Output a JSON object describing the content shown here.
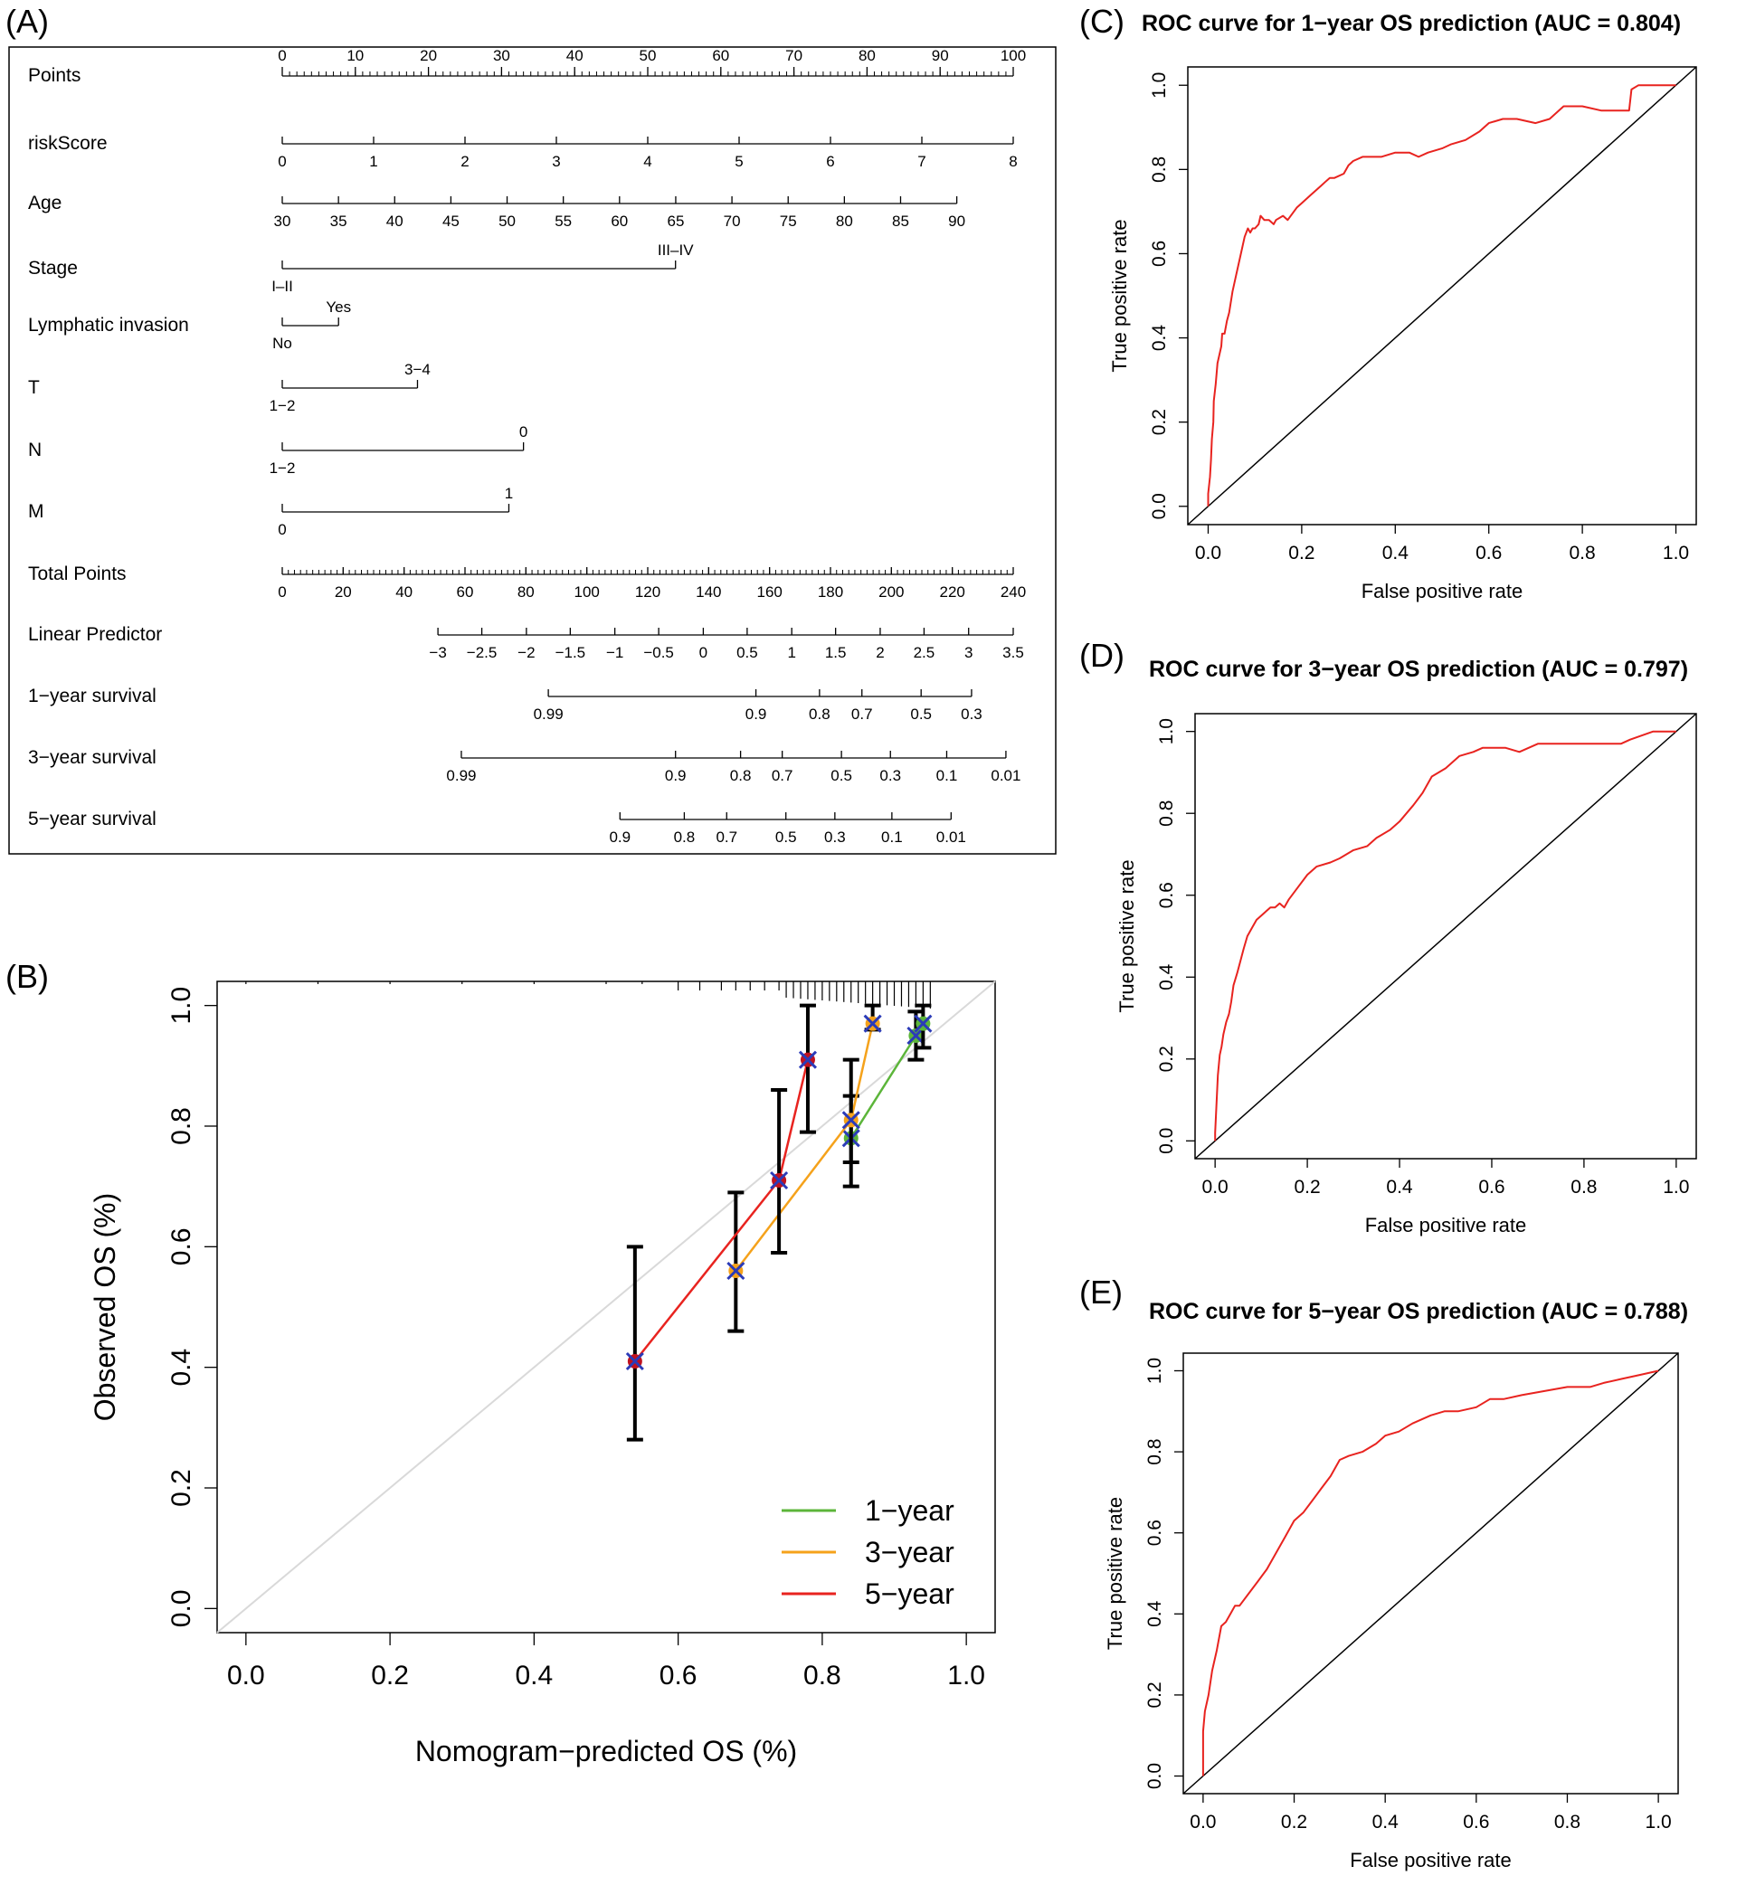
{
  "panels": {
    "A": {
      "letter": "(A)"
    },
    "B": {
      "letter": "(B)"
    },
    "C": {
      "letter": "(C)"
    },
    "D": {
      "letter": "(D)"
    },
    "E": {
      "letter": "(E)"
    }
  },
  "colors": {
    "roc_curve": "#e8231f",
    "one_year": "#5cb53a",
    "three_year": "#f5a21b",
    "five_year": "#e8231f",
    "ideal_line": "#d9d9d9",
    "cross_marker": "#2b3bb8",
    "dot_marker": "#c1121f"
  },
  "chart_data": [
    {
      "panel": "A",
      "type": "nomogram",
      "rows": [
        {
          "label": "Points",
          "ticks": [
            {
              "v": 0,
              "t": "0"
            },
            {
              "v": 10,
              "t": "10"
            },
            {
              "v": 20,
              "t": "20"
            },
            {
              "v": 30,
              "t": "30"
            },
            {
              "v": 40,
              "t": "40"
            },
            {
              "v": 50,
              "t": "50"
            },
            {
              "v": 60,
              "t": "60"
            },
            {
              "v": 70,
              "t": "70"
            },
            {
              "v": 80,
              "t": "80"
            },
            {
              "v": 90,
              "t": "90"
            },
            {
              "v": 100,
              "t": "100"
            }
          ]
        },
        {
          "label": "riskScore",
          "ticks": [
            {
              "v": 0,
              "t": "0"
            },
            {
              "v": 12.5,
              "t": "1"
            },
            {
              "v": 25,
              "t": "2"
            },
            {
              "v": 37.5,
              "t": "3"
            },
            {
              "v": 50,
              "t": "4"
            },
            {
              "v": 62.5,
              "t": "5"
            },
            {
              "v": 75,
              "t": "6"
            },
            {
              "v": 87.5,
              "t": "7"
            },
            {
              "v": 100,
              "t": "8"
            }
          ]
        },
        {
          "label": "Age",
          "ticks": [
            {
              "v": 0,
              "t": "30"
            },
            {
              "v": 7.69,
              "t": "35"
            },
            {
              "v": 15.38,
              "t": "40"
            },
            {
              "v": 23.07,
              "t": "45"
            },
            {
              "v": 30.76,
              "t": "50"
            },
            {
              "v": 38.45,
              "t": "55"
            },
            {
              "v": 46.14,
              "t": "60"
            },
            {
              "v": 53.83,
              "t": "65"
            },
            {
              "v": 61.52,
              "t": "70"
            },
            {
              "v": 69.21,
              "t": "75"
            },
            {
              "v": 76.9,
              "t": "80"
            },
            {
              "v": 84.59,
              "t": "85"
            },
            {
              "v": 92.28,
              "t": "90"
            }
          ]
        },
        {
          "label": "Stage",
          "levels": [
            {
              "v": 0,
              "t": "I–II",
              "pos": "below"
            },
            {
              "v": 53.8,
              "t": "III–IV",
              "pos": "above"
            }
          ]
        },
        {
          "label": "Lymphatic  invasion",
          "levels": [
            {
              "v": 0,
              "t": "No",
              "pos": "below"
            },
            {
              "v": 7.7,
              "t": "Yes",
              "pos": "above"
            }
          ]
        },
        {
          "label": "T",
          "levels": [
            {
              "v": 0,
              "t": "1−2",
              "pos": "below"
            },
            {
              "v": 18.5,
              "t": "3−4",
              "pos": "above"
            }
          ]
        },
        {
          "label": "N",
          "levels": [
            {
              "v": 0,
              "t": "1−2",
              "pos": "below"
            },
            {
              "v": 33,
              "t": "0",
              "pos": "above"
            }
          ]
        },
        {
          "label": "M",
          "levels": [
            {
              "v": 0,
              "t": "0",
              "pos": "below"
            },
            {
              "v": 31,
              "t": "1",
              "pos": "above"
            }
          ]
        },
        {
          "label": "Total Points",
          "ticks": [
            {
              "v": 0,
              "t": "0"
            },
            {
              "v": 8.33,
              "t": "20"
            },
            {
              "v": 16.67,
              "t": "40"
            },
            {
              "v": 25,
              "t": "60"
            },
            {
              "v": 33.33,
              "t": "80"
            },
            {
              "v": 41.67,
              "t": "100"
            },
            {
              "v": 50,
              "t": "120"
            },
            {
              "v": 58.33,
              "t": "140"
            },
            {
              "v": 66.67,
              "t": "160"
            },
            {
              "v": 75,
              "t": "180"
            },
            {
              "v": 83.33,
              "t": "200"
            },
            {
              "v": 91.67,
              "t": "220"
            },
            {
              "v": 100,
              "t": "240"
            }
          ]
        },
        {
          "label": "Linear Predictor",
          "ticks": [
            {
              "v": 21.3,
              "t": "−3"
            },
            {
              "v": 27.3,
              "t": "−2.5"
            },
            {
              "v": 33.4,
              "t": "−2"
            },
            {
              "v": 39.4,
              "t": "−1.5"
            },
            {
              "v": 45.5,
              "t": "−1"
            },
            {
              "v": 51.5,
              "t": "−0.5"
            },
            {
              "v": 57.6,
              "t": "0"
            },
            {
              "v": 63.6,
              "t": "0.5"
            },
            {
              "v": 69.7,
              "t": "1"
            },
            {
              "v": 75.7,
              "t": "1.5"
            },
            {
              "v": 81.8,
              "t": "2"
            },
            {
              "v": 87.8,
              "t": "2.5"
            },
            {
              "v": 93.9,
              "t": "3"
            },
            {
              "v": 100,
              "t": "3.5"
            }
          ]
        },
        {
          "label": "1−year survival",
          "ticks": [
            {
              "v": 36.4,
              "t": "0.99"
            },
            {
              "v": 64.8,
              "t": "0.9"
            },
            {
              "v": 73.5,
              "t": "0.8"
            },
            {
              "v": 79.3,
              "t": "0.7"
            },
            {
              "v": 87.4,
              "t": "0.5"
            },
            {
              "v": 94.3,
              "t": "0.3"
            }
          ]
        },
        {
          "label": "3−year survival",
          "ticks": [
            {
              "v": 24.5,
              "t": "0.99"
            },
            {
              "v": 53.8,
              "t": "0.9"
            },
            {
              "v": 62.7,
              "t": "0.8"
            },
            {
              "v": 68.4,
              "t": "0.7"
            },
            {
              "v": 76.5,
              "t": "0.5"
            },
            {
              "v": 83.2,
              "t": "0.3"
            },
            {
              "v": 90.9,
              "t": "0.1"
            },
            {
              "v": 99,
              "t": "0.01"
            }
          ]
        },
        {
          "label": "5−year survival",
          "ticks": [
            {
              "v": 46.2,
              "t": "0.9"
            },
            {
              "v": 55,
              "t": "0.8"
            },
            {
              "v": 60.8,
              "t": "0.7"
            },
            {
              "v": 68.9,
              "t": "0.5"
            },
            {
              "v": 75.6,
              "t": "0.3"
            },
            {
              "v": 83.4,
              "t": "0.1"
            },
            {
              "v": 91.5,
              "t": "0.01"
            }
          ]
        }
      ]
    },
    {
      "panel": "B",
      "type": "calibration",
      "xlabel": "Nomogram−predicted OS (%)",
      "ylabel": "Observed OS (%)",
      "xlim": [
        -0.04,
        1.04
      ],
      "ylim": [
        -0.04,
        1.04
      ],
      "xticks": [
        "0.0",
        "0.2",
        "0.4",
        "0.6",
        "0.8",
        "1.0"
      ],
      "yticks": [
        "0.0",
        "0.2",
        "0.4",
        "0.6",
        "0.8",
        "1.0"
      ],
      "legend": [
        "1−year",
        "3−year",
        "5−year"
      ],
      "series": [
        {
          "name": "1−year",
          "points": [
            {
              "x": 0.84,
              "y": 0.78,
              "lo": 0.7,
              "hi": 0.85
            },
            {
              "x": 0.93,
              "y": 0.95,
              "lo": 0.91,
              "hi": 0.99
            },
            {
              "x": 0.94,
              "y": 0.97,
              "lo": 0.93,
              "hi": 1.0
            }
          ]
        },
        {
          "name": "3−year",
          "points": [
            {
              "x": 0.68,
              "y": 0.56,
              "lo": 0.46,
              "hi": 0.69
            },
            {
              "x": 0.84,
              "y": 0.81,
              "lo": 0.74,
              "hi": 0.91
            },
            {
              "x": 0.87,
              "y": 0.97,
              "lo": 0.96,
              "hi": 1.0
            }
          ]
        },
        {
          "name": "5−year",
          "points": [
            {
              "x": 0.54,
              "y": 0.41,
              "lo": 0.28,
              "hi": 0.6
            },
            {
              "x": 0.74,
              "y": 0.71,
              "lo": 0.59,
              "hi": 0.86
            },
            {
              "x": 0.78,
              "y": 0.91,
              "lo": 0.79,
              "hi": 1.0
            }
          ]
        }
      ]
    },
    {
      "panel": "C",
      "type": "line",
      "title": "ROC curve for 1−year OS prediction (AUC =  0.804)",
      "xlabel": "False positive rate",
      "ylabel": "True positive rate",
      "xlim": [
        0,
        1
      ],
      "ylim": [
        0,
        1
      ],
      "ticks": [
        "0.0",
        "0.2",
        "0.4",
        "0.6",
        "0.8",
        "1.0"
      ],
      "x": [
        0,
        0,
        0.004,
        0.006,
        0.008,
        0.011,
        0.012,
        0.016,
        0.02,
        0.024,
        0.028,
        0.03,
        0.035,
        0.04,
        0.045,
        0.052,
        0.06,
        0.07,
        0.078,
        0.085,
        0.09,
        0.095,
        0.1,
        0.108,
        0.112,
        0.12,
        0.13,
        0.14,
        0.145,
        0.16,
        0.17,
        0.19,
        0.2,
        0.22,
        0.23,
        0.24,
        0.25,
        0.26,
        0.27,
        0.29,
        0.3,
        0.31,
        0.33,
        0.34,
        0.37,
        0.4,
        0.43,
        0.45,
        0.47,
        0.5,
        0.52,
        0.55,
        0.58,
        0.6,
        0.63,
        0.66,
        0.7,
        0.73,
        0.76,
        0.8,
        0.84,
        0.88,
        0.9,
        0.905,
        0.92,
        0.95,
        1
      ],
      "y": [
        0,
        0.03,
        0.07,
        0.11,
        0.16,
        0.2,
        0.25,
        0.29,
        0.34,
        0.36,
        0.38,
        0.41,
        0.41,
        0.44,
        0.46,
        0.51,
        0.55,
        0.6,
        0.64,
        0.66,
        0.65,
        0.66,
        0.66,
        0.67,
        0.69,
        0.68,
        0.68,
        0.67,
        0.68,
        0.69,
        0.68,
        0.71,
        0.72,
        0.74,
        0.75,
        0.76,
        0.77,
        0.78,
        0.78,
        0.79,
        0.81,
        0.82,
        0.83,
        0.83,
        0.83,
        0.84,
        0.84,
        0.83,
        0.84,
        0.85,
        0.86,
        0.87,
        0.89,
        0.91,
        0.92,
        0.92,
        0.91,
        0.92,
        0.95,
        0.95,
        0.94,
        0.94,
        0.94,
        0.99,
        1,
        1,
        1
      ]
    },
    {
      "panel": "D",
      "type": "line",
      "title": "ROC curve for 3−year OS prediction (AUC =  0.797)",
      "xlabel": "False positive rate",
      "ylabel": "True positive rate",
      "xlim": [
        0,
        1
      ],
      "ylim": [
        0,
        1
      ],
      "ticks": [
        "0.0",
        "0.2",
        "0.4",
        "0.6",
        "0.8",
        "1.0"
      ],
      "x": [
        0,
        0,
        0.003,
        0.006,
        0.01,
        0.014,
        0.018,
        0.024,
        0.03,
        0.035,
        0.04,
        0.048,
        0.055,
        0.062,
        0.07,
        0.08,
        0.09,
        0.1,
        0.11,
        0.12,
        0.13,
        0.14,
        0.15,
        0.16,
        0.18,
        0.2,
        0.22,
        0.25,
        0.27,
        0.3,
        0.33,
        0.35,
        0.38,
        0.4,
        0.43,
        0.45,
        0.47,
        0.5,
        0.53,
        0.56,
        0.58,
        0.6,
        0.63,
        0.66,
        0.7,
        0.75,
        0.8,
        0.85,
        0.88,
        0.9,
        0.95,
        1
      ],
      "y": [
        0,
        0.02,
        0.09,
        0.16,
        0.21,
        0.23,
        0.26,
        0.29,
        0.31,
        0.34,
        0.38,
        0.41,
        0.44,
        0.47,
        0.5,
        0.52,
        0.54,
        0.55,
        0.56,
        0.57,
        0.57,
        0.58,
        0.57,
        0.59,
        0.62,
        0.65,
        0.67,
        0.68,
        0.69,
        0.71,
        0.72,
        0.74,
        0.76,
        0.78,
        0.82,
        0.85,
        0.89,
        0.91,
        0.94,
        0.95,
        0.96,
        0.96,
        0.96,
        0.95,
        0.97,
        0.97,
        0.97,
        0.97,
        0.97,
        0.98,
        1,
        1
      ]
    },
    {
      "panel": "E",
      "type": "line",
      "title": "ROC curve for 5−year OS prediction (AUC =  0.788)",
      "xlabel": "False positive rate",
      "ylabel": "True positive rate",
      "xlim": [
        0,
        1
      ],
      "ylim": [
        0,
        1
      ],
      "ticks": [
        "0.0",
        "0.2",
        "0.4",
        "0.6",
        "0.8",
        "1.0"
      ],
      "x": [
        0,
        0,
        0.004,
        0.008,
        0.012,
        0.02,
        0.03,
        0.04,
        0.05,
        0.06,
        0.07,
        0.08,
        0.1,
        0.12,
        0.14,
        0.16,
        0.18,
        0.2,
        0.22,
        0.24,
        0.26,
        0.28,
        0.3,
        0.32,
        0.35,
        0.38,
        0.4,
        0.43,
        0.46,
        0.5,
        0.53,
        0.56,
        0.6,
        0.63,
        0.66,
        0.7,
        0.75,
        0.8,
        0.85,
        0.88,
        0.92,
        0.96,
        1
      ],
      "y": [
        0,
        0.11,
        0.16,
        0.18,
        0.2,
        0.26,
        0.31,
        0.37,
        0.38,
        0.4,
        0.42,
        0.42,
        0.45,
        0.48,
        0.51,
        0.55,
        0.59,
        0.63,
        0.65,
        0.68,
        0.71,
        0.74,
        0.78,
        0.79,
        0.8,
        0.82,
        0.84,
        0.85,
        0.87,
        0.89,
        0.9,
        0.9,
        0.91,
        0.93,
        0.93,
        0.94,
        0.95,
        0.96,
        0.96,
        0.97,
        0.98,
        0.99,
        1
      ]
    }
  ]
}
